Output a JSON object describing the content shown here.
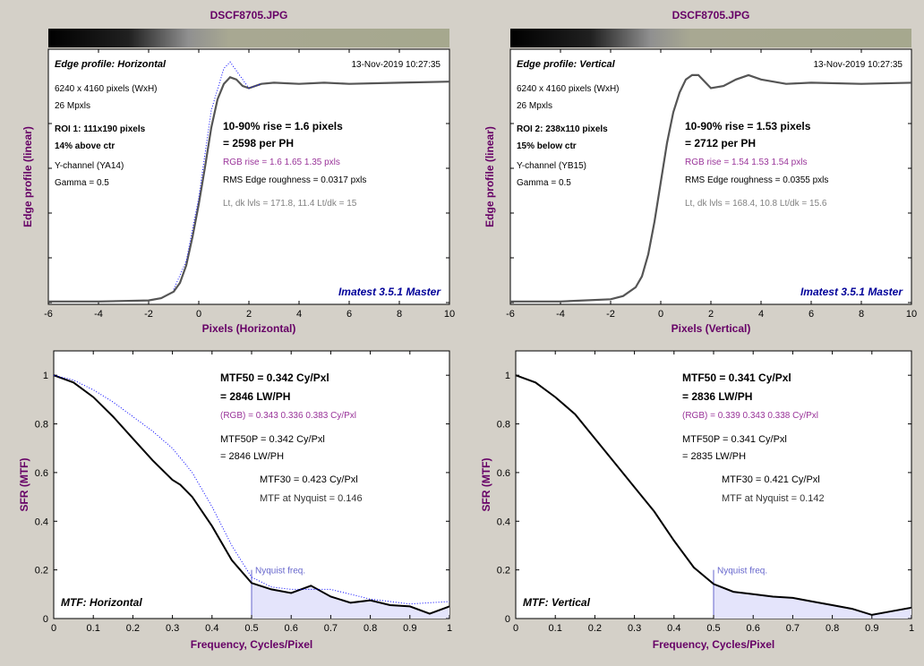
{
  "colors": {
    "title": "#660066",
    "label": "#660066",
    "brand": "#000099",
    "rgb_text": "#993399",
    "grey_text": "#808080",
    "blue_dots": "#0000ff",
    "shade": "#e4e4fb",
    "nyquist": "#6666cc",
    "plot_bg": "#ffffff",
    "window_bg": "#d4d0c8"
  },
  "panels": [
    {
      "id": "edge-h",
      "file_title": "DSCF8705.JPG",
      "profile_title": "Edge profile: Horizontal",
      "date": "13-Nov-2019 10:27:35",
      "info_left": [
        "6240 x 4160 pixels (WxH)",
        "26 Mpxls",
        "ROI 1:  111x190 pixels",
        "14% above ctr",
        "Y-channel  (YA14)",
        "Gamma = 0.5"
      ],
      "rise_line1": "10-90% rise = 1.6 pixels",
      "rise_line2": "= 2598 per PH",
      "rgb_rise": "RGB rise = 1.6  1.65  1.35 pxls",
      "rms": "RMS Edge roughness = 0.0317 pxls",
      "levels": "Lt, dk lvls = 171.8, 11.4   Lt/dk = 15",
      "brand": "Imatest 3.5.1 Master",
      "xlabel": "Pixels (Horizontal)",
      "ylabel": "Edge profile (linear)"
    },
    {
      "id": "edge-v",
      "file_title": "DSCF8705.JPG",
      "profile_title": "Edge profile: Vertical",
      "date": "13-Nov-2019 10:27:35",
      "info_left": [
        "6240 x 4160 pixels (WxH)",
        "26 Mpxls",
        "ROI 2:  238x110 pixels",
        "15% below ctr",
        "Y-channel  (YB15)",
        "Gamma = 0.5"
      ],
      "rise_line1": "10-90% rise = 1.53 pixels",
      "rise_line2": "= 2712 per PH",
      "rgb_rise": "RGB rise = 1.54  1.53  1.54 pxls",
      "rms": "RMS Edge roughness = 0.0355 pxls",
      "levels": "Lt, dk lvls = 168.4, 10.8   Lt/dk = 15.6",
      "brand": "Imatest 3.5.1 Master",
      "xlabel": "Pixels (Vertical)",
      "ylabel": "Edge profile (linear)"
    },
    {
      "id": "mtf-h",
      "mtf50_1": "MTF50 = 0.342 Cy/Pxl",
      "mtf50_2": "= 2846 LW/PH",
      "rgb": "(RGB) = 0.343  0.336  0.383 Cy/Pxl",
      "mtf50p_1": "MTF50P = 0.342 Cy/Pxl",
      "mtf50p_2": "= 2846 LW/PH",
      "mtf30": "MTF30 = 0.423 Cy/Pxl",
      "nyq": "MTF at Nyquist = 0.146",
      "nyq_label": "Nyquist freq.",
      "corner": "MTF: Horizontal",
      "xlabel": "Frequency, Cycles/Pixel",
      "ylabel": "SFR (MTF)"
    },
    {
      "id": "mtf-v",
      "mtf50_1": "MTF50 = 0.341 Cy/Pxl",
      "mtf50_2": "= 2836 LW/PH",
      "rgb": "(RGB) = 0.339  0.343  0.338 Cy/Pxl",
      "mtf50p_1": "MTF50P = 0.341 Cy/Pxl",
      "mtf50p_2": "= 2835 LW/PH",
      "mtf30": "MTF30 = 0.421 Cy/Pxl",
      "nyq": "MTF at Nyquist = 0.142",
      "nyq_label": "Nyquist freq.",
      "corner": "MTF: Vertical",
      "xlabel": "Frequency, Cycles/Pixel",
      "ylabel": "SFR (MTF)"
    }
  ],
  "chart_data": [
    {
      "type": "line",
      "title": "Edge profile: Horizontal",
      "xlabel": "Pixels (Horizontal)",
      "ylabel": "Edge profile (linear)",
      "xlim": [
        -6,
        10
      ],
      "ylim": [
        0,
        1.15
      ],
      "xticks": [
        "-6",
        "-4",
        "-2",
        "0",
        "2",
        "4",
        "6",
        "8",
        "10"
      ],
      "yticks_count": 5,
      "series": [
        {
          "x": [
            -6,
            -4,
            -2,
            -1.5,
            -1,
            -0.75,
            -0.5,
            -0.25,
            0,
            0.25,
            0.5,
            0.75,
            1,
            1.25,
            1.5,
            1.75,
            2,
            2.5,
            3,
            4,
            5,
            6,
            8,
            10
          ],
          "y": [
            0.005,
            0.005,
            0.01,
            0.02,
            0.05,
            0.09,
            0.17,
            0.3,
            0.45,
            0.62,
            0.8,
            0.93,
            1.0,
            1.03,
            1.02,
            0.99,
            0.98,
            1.0,
            1.005,
            1.0,
            1.005,
            1.0,
            1.005,
            1.01
          ]
        },
        {
          "x": [
            -1,
            -0.5,
            0,
            0.5,
            1,
            1.25,
            1.5,
            2,
            2.5
          ],
          "y": [
            0.06,
            0.19,
            0.48,
            0.88,
            1.07,
            1.1,
            1.06,
            0.98,
            1.0
          ]
        }
      ]
    },
    {
      "type": "line",
      "title": "Edge profile: Vertical",
      "xlabel": "Pixels (Vertical)",
      "ylabel": "Edge profile (linear)",
      "xlim": [
        -6,
        10
      ],
      "ylim": [
        0,
        1.15
      ],
      "xticks": [
        "-6",
        "-4",
        "-2",
        "0",
        "2",
        "4",
        "6",
        "8",
        "10"
      ],
      "yticks_count": 5,
      "series": [
        {
          "x": [
            -6,
            -4,
            -2,
            -1.5,
            -1,
            -0.75,
            -0.5,
            -0.25,
            0,
            0.25,
            0.5,
            0.75,
            1,
            1.25,
            1.5,
            2,
            2.5,
            3,
            3.5,
            4,
            5,
            6,
            8,
            10
          ],
          "y": [
            0.005,
            0.005,
            0.015,
            0.03,
            0.07,
            0.12,
            0.22,
            0.37,
            0.55,
            0.73,
            0.87,
            0.96,
            1.02,
            1.04,
            1.04,
            0.98,
            0.99,
            1.02,
            1.04,
            1.02,
            1.0,
            1.005,
            1.0,
            1.005
          ]
        }
      ]
    },
    {
      "type": "line",
      "title": "MTF: Horizontal",
      "xlabel": "Frequency, Cycles/Pixel",
      "ylabel": "SFR (MTF)",
      "xlim": [
        0,
        1
      ],
      "ylim": [
        0,
        1.1
      ],
      "xticks": [
        "0",
        "0.1",
        "0.2",
        "0.3",
        "0.4",
        "0.5",
        "0.6",
        "0.7",
        "0.8",
        "0.9",
        "1"
      ],
      "yticks": [
        "0",
        "0.2",
        "0.4",
        "0.6",
        "0.8",
        "1"
      ],
      "nyquist": 0.5,
      "series": [
        {
          "x": [
            0,
            0.05,
            0.1,
            0.15,
            0.2,
            0.25,
            0.3,
            0.32,
            0.35,
            0.4,
            0.45,
            0.5,
            0.55,
            0.6,
            0.65,
            0.7,
            0.75,
            0.8,
            0.85,
            0.9,
            0.95,
            1
          ],
          "y": [
            1,
            0.97,
            0.91,
            0.83,
            0.74,
            0.65,
            0.57,
            0.55,
            0.5,
            0.38,
            0.24,
            0.146,
            0.12,
            0.105,
            0.135,
            0.09,
            0.065,
            0.075,
            0.055,
            0.05,
            0.02,
            0.05
          ]
        },
        {
          "x": [
            0,
            0.05,
            0.1,
            0.15,
            0.2,
            0.25,
            0.3,
            0.35,
            0.4,
            0.45,
            0.5,
            0.55,
            0.6,
            0.7,
            0.8,
            0.9,
            1
          ],
          "y": [
            1,
            0.98,
            0.94,
            0.89,
            0.83,
            0.77,
            0.7,
            0.6,
            0.46,
            0.3,
            0.17,
            0.13,
            0.12,
            0.12,
            0.08,
            0.06,
            0.07
          ]
        }
      ]
    },
    {
      "type": "line",
      "title": "MTF: Vertical",
      "xlabel": "Frequency, Cycles/Pixel",
      "ylabel": "SFR (MTF)",
      "xlim": [
        0,
        1
      ],
      "ylim": [
        0,
        1.1
      ],
      "xticks": [
        "0",
        "0.1",
        "0.2",
        "0.3",
        "0.4",
        "0.5",
        "0.6",
        "0.7",
        "0.8",
        "0.9",
        "1"
      ],
      "yticks": [
        "0",
        "0.2",
        "0.4",
        "0.6",
        "0.8",
        "1"
      ],
      "nyquist": 0.5,
      "series": [
        {
          "x": [
            0,
            0.05,
            0.1,
            0.15,
            0.2,
            0.25,
            0.3,
            0.35,
            0.4,
            0.45,
            0.5,
            0.55,
            0.6,
            0.65,
            0.7,
            0.75,
            0.8,
            0.85,
            0.9,
            0.95,
            1
          ],
          "y": [
            1,
            0.97,
            0.91,
            0.84,
            0.74,
            0.64,
            0.54,
            0.44,
            0.32,
            0.21,
            0.142,
            0.11,
            0.1,
            0.09,
            0.085,
            0.07,
            0.055,
            0.04,
            0.015,
            0.03,
            0.045
          ]
        }
      ]
    }
  ]
}
